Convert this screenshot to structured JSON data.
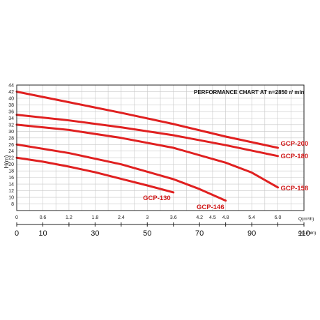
{
  "chart_data": {
    "type": "line",
    "title": "PERFORMANCE CHART AT n=2850 r/ min",
    "ylabel": "H(m)",
    "x_units_label": "Q(m³/h)",
    "secondary_x_units_label": "Q(L/min)",
    "xlim": [
      0,
      6.6
    ],
    "ylim": [
      6,
      44
    ],
    "x_ticks": [
      "0",
      "0.6",
      "1.2",
      "1.8",
      "2.4",
      "3",
      "3.6",
      "4.2",
      "4.5",
      "4.8",
      "5.4",
      "6.0"
    ],
    "y_ticks": [
      "8",
      "10",
      "12",
      "14",
      "16",
      "18",
      "20",
      "22",
      "24",
      "26",
      "28",
      "30",
      "32",
      "34",
      "36",
      "38",
      "40",
      "42",
      "44"
    ],
    "secondary_x_ticks": [
      "0",
      "10",
      "30",
      "50",
      "70",
      "90",
      "110"
    ],
    "grid": true,
    "series_color": "#e02020",
    "label_color": "#d01818",
    "series": [
      {
        "name": "GCP-200",
        "x": [
          0,
          1.2,
          2.4,
          3.6,
          4.8,
          6.0
        ],
        "y": [
          42,
          38.8,
          35.6,
          32.2,
          28.4,
          25
        ]
      },
      {
        "name": "GCP-180",
        "x": [
          0,
          1.2,
          2.4,
          3.6,
          4.8,
          6.0
        ],
        "y": [
          35,
          33.3,
          31.2,
          28.8,
          25.8,
          22.5
        ]
      },
      {
        "name": "GCP-158",
        "x": [
          0,
          1.2,
          2.4,
          3.6,
          4.8,
          5.4,
          6.0
        ],
        "y": [
          32,
          30.4,
          28,
          25,
          20.5,
          17.5,
          13
        ]
      },
      {
        "name": "GCP-146",
        "x": [
          0,
          1.2,
          2.4,
          3.6,
          4.2,
          4.8
        ],
        "y": [
          26,
          23.4,
          20,
          15.5,
          12.5,
          9
        ]
      },
      {
        "name": "GCP-130",
        "x": [
          0,
          0.6,
          1.2,
          1.8,
          2.4,
          3,
          3.6
        ],
        "y": [
          22,
          20.8,
          19.3,
          17.6,
          15.6,
          13.6,
          11.5
        ]
      }
    ]
  }
}
